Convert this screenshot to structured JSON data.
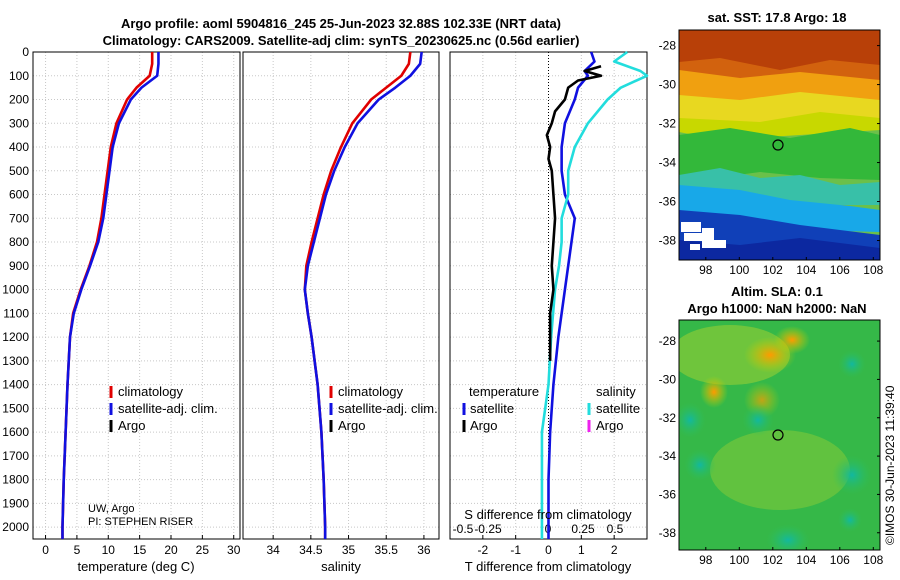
{
  "header": {
    "line1": "Argo profile: aoml 5904816_245 25-Jun-2023 32.88S 102.33E (NRT data)",
    "line2": "Climatology: CARS2009. Satellite-adj clim: synTS_20230625.nc (0.56d earlier)"
  },
  "watermark": "©IMOS 30-Jun-2023 11:39:40",
  "credit": {
    "line1": "UW, Argo",
    "line2": "PI: STEPHEN RISER"
  },
  "colors": {
    "climatology": "#e00000",
    "satellite": "#1010e0",
    "argo": "#000000",
    "sat_salinity": "#22dddd",
    "argo_salinity": "#ee22ee"
  },
  "depth_ticks": [
    0,
    100,
    200,
    300,
    400,
    500,
    600,
    700,
    800,
    900,
    1000,
    1100,
    1200,
    1300,
    1400,
    1500,
    1600,
    1700,
    1800,
    1900,
    2000
  ],
  "chart_data": [
    {
      "type": "line",
      "id": "temperature",
      "xlabel": "temperature (deg C)",
      "xlim": [
        -2,
        31
      ],
      "ylim": [
        0,
        2050
      ],
      "xticks": [
        0,
        5,
        10,
        15,
        20,
        25,
        30
      ],
      "legend": [
        "climatology",
        "satellite-adj. clim.",
        "Argo"
      ],
      "series": [
        {
          "name": "climatology",
          "depth": [
            0,
            50,
            100,
            150,
            200,
            300,
            400,
            500,
            600,
            700,
            800,
            900,
            1000,
            1100,
            1200,
            1400,
            1600,
            1800,
            2000,
            2050
          ],
          "values": [
            17,
            17,
            16.6,
            14.5,
            13,
            11.3,
            10.4,
            9.9,
            9.4,
            8.9,
            8.2,
            7,
            5.6,
            4.4,
            3.9,
            3.5,
            3.2,
            2.9,
            2.7,
            2.7
          ]
        },
        {
          "name": "satellite-adj. clim.",
          "depth": [
            0,
            50,
            100,
            150,
            200,
            300,
            400,
            500,
            600,
            700,
            800,
            900,
            1000,
            1100,
            1200,
            1400,
            1600,
            1800,
            2000,
            2050
          ],
          "values": [
            18,
            18,
            17.8,
            15.3,
            13.6,
            11.7,
            10.7,
            10.2,
            9.7,
            9.2,
            8.4,
            7.1,
            5.7,
            4.5,
            3.9,
            3.5,
            3.2,
            2.9,
            2.7,
            2.7
          ]
        }
      ]
    },
    {
      "type": "line",
      "id": "salinity",
      "xlabel": "salinity",
      "xlim": [
        33.6,
        36.2
      ],
      "ylim": [
        0,
        2050
      ],
      "xticks": [
        34,
        34.5,
        35,
        35.5,
        36
      ],
      "legend": [
        "climatology",
        "satellite-adj. clim.",
        "Argo"
      ],
      "series": [
        {
          "name": "climatology",
          "depth": [
            0,
            50,
            100,
            150,
            200,
            300,
            400,
            500,
            600,
            700,
            800,
            900,
            1000,
            1100,
            1200,
            1400,
            1600,
            1800,
            2000,
            2050
          ],
          "values": [
            35.82,
            35.8,
            35.7,
            35.5,
            35.3,
            35.05,
            34.9,
            34.77,
            34.67,
            34.59,
            34.51,
            34.44,
            34.42,
            34.46,
            34.51,
            34.59,
            34.64,
            34.67,
            34.69,
            34.69
          ]
        },
        {
          "name": "satellite-adj. clim.",
          "depth": [
            0,
            50,
            100,
            150,
            200,
            300,
            400,
            500,
            600,
            700,
            800,
            900,
            1000,
            1100,
            1200,
            1400,
            1600,
            1800,
            2000,
            2050
          ],
          "values": [
            35.97,
            35.95,
            35.82,
            35.62,
            35.4,
            35.12,
            34.95,
            34.81,
            34.7,
            34.62,
            34.54,
            34.46,
            34.42,
            34.46,
            34.51,
            34.59,
            34.64,
            34.67,
            34.69,
            34.69
          ]
        }
      ]
    },
    {
      "type": "line",
      "id": "difference",
      "xlabel": "T difference from climatology",
      "top_label": "S difference from climatology",
      "xlim": [
        -3,
        3
      ],
      "ylim": [
        0,
        2050
      ],
      "xticks": [
        -2,
        -1,
        0,
        1,
        2
      ],
      "top_ticks": [
        "-0.5",
        "-0.25",
        "0",
        "0.25",
        "0.5"
      ],
      "legend_left_title": "temperature",
      "legend_right_title": "salinity",
      "legend_left": [
        "satellite",
        "Argo"
      ],
      "legend_right": [
        "satellite",
        "Argo"
      ],
      "series": [
        {
          "name": "T satellite",
          "depth": [
            0,
            40,
            80,
            100,
            150,
            200,
            300,
            400,
            500,
            600,
            700,
            800,
            900,
            1000,
            1200,
            1400,
            1600,
            1800,
            2000,
            2050
          ],
          "values": [
            1.3,
            1.4,
            1.1,
            1.2,
            0.9,
            0.8,
            0.5,
            0.4,
            0.4,
            0.5,
            0.8,
            0.7,
            0.6,
            0.5,
            0.3,
            0.15,
            0.05,
            0,
            0,
            0
          ]
        },
        {
          "name": "S satellite",
          "depth": [
            0,
            40,
            80,
            100,
            150,
            200,
            300,
            400,
            500,
            600,
            700,
            800,
            900,
            1000,
            1200,
            1400,
            1600,
            1800,
            2000,
            2050
          ],
          "values": [
            0.6,
            0.5,
            0.7,
            0.75,
            0.55,
            0.45,
            0.3,
            0.2,
            0.15,
            0.15,
            0.1,
            0.1,
            0.08,
            0.05,
            0.02,
            0,
            -0.05,
            -0.05,
            -0.05,
            -0.05
          ]
        },
        {
          "name": "T Argo",
          "depth": [
            60,
            80,
            100,
            120,
            150,
            200,
            250,
            300,
            350,
            400,
            450,
            500,
            600,
            700,
            800,
            900,
            1000,
            1100,
            1200,
            1300
          ],
          "values": [
            1.6,
            1.1,
            1.6,
            0.9,
            0.6,
            0.5,
            0.2,
            0.1,
            -0.05,
            0.05,
            0,
            0.1,
            0.15,
            0.2,
            0.15,
            0.1,
            0.15,
            0.05,
            0.05,
            0.05
          ]
        }
      ]
    },
    {
      "type": "heatmap",
      "id": "sst",
      "title": "sat. SST: 17.8 Argo: 18",
      "xticks": [
        "98",
        "100",
        "102",
        "104",
        "106",
        "108"
      ],
      "yticks": [
        "-28",
        "-30",
        "-32",
        "-34",
        "-36",
        "-38"
      ],
      "xlim": [
        96.4,
        108.4
      ],
      "ylim": [
        -39,
        -27.2
      ],
      "marker": [
        102.33,
        -32.88
      ]
    },
    {
      "type": "heatmap",
      "id": "sla",
      "title_line1": "Altim. SLA: 0.1",
      "title_line2": "Argo h1000: NaN h2000: NaN",
      "xticks": [
        "98",
        "100",
        "102",
        "104",
        "106",
        "108"
      ],
      "yticks": [
        "-28",
        "-30",
        "-32",
        "-34",
        "-36",
        "-38"
      ],
      "xlim": [
        96.4,
        108.4
      ],
      "ylim": [
        -38.9,
        -26.9
      ],
      "marker": [
        102.33,
        -32.88
      ]
    }
  ]
}
